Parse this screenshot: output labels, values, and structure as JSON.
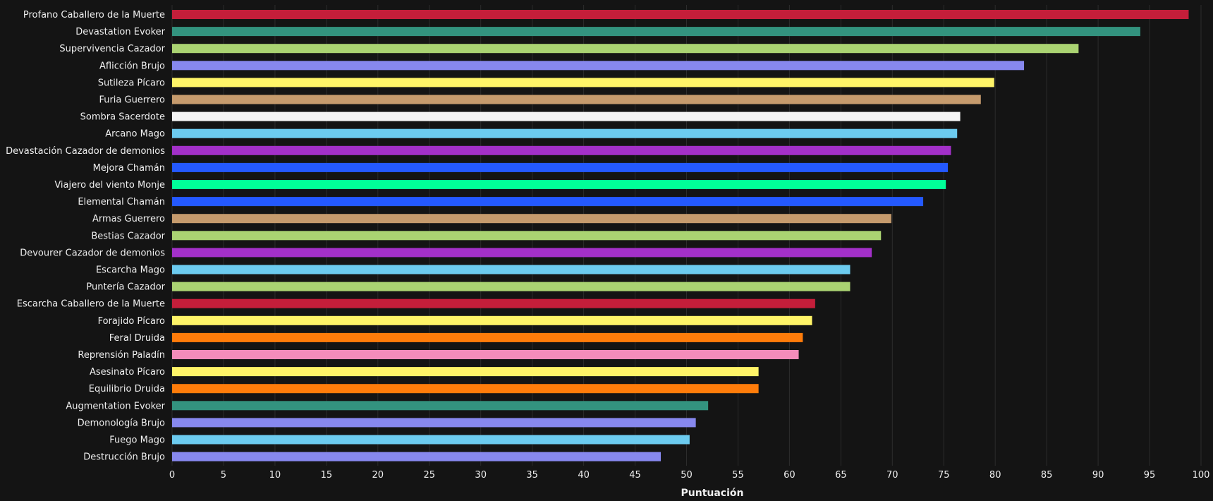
{
  "chart_data": {
    "type": "bar",
    "orientation": "horizontal",
    "title": "",
    "xlabel": "Puntuación",
    "ylabel": "",
    "xlim": [
      0,
      100
    ],
    "xticks": [
      0,
      5,
      10,
      15,
      20,
      25,
      30,
      35,
      40,
      45,
      50,
      55,
      60,
      65,
      70,
      75,
      80,
      85,
      90,
      95,
      100
    ],
    "grid": "vertical",
    "legend": "none",
    "categories": [
      "Profano Caballero de la Muerte",
      "Devastation Evoker",
      "Supervivencia Cazador",
      "Aflicción Brujo",
      "Sutileza Pícaro",
      "Furia Guerrero",
      "Sombra Sacerdote",
      "Arcano Mago",
      "Devastación Cazador de demonios",
      "Mejora Chamán",
      "Viajero del viento Monje",
      "Elemental Chamán",
      "Armas Guerrero",
      "Bestias Cazador",
      "Devourer Cazador de demonios",
      "Escarcha Mago",
      "Puntería Cazador",
      "Escarcha Caballero de la Muerte",
      "Forajido Pícaro",
      "Feral Druida",
      "Reprensión Paladín",
      "Asesinato Pícaro",
      "Equilibrio Druida",
      "Augmentation Evoker",
      "Demonología Brujo",
      "Fuego Mago",
      "Destrucción Brujo"
    ],
    "values": [
      98.8,
      94.1,
      88.1,
      82.8,
      79.9,
      78.6,
      76.6,
      76.3,
      75.7,
      75.4,
      75.2,
      73.0,
      69.9,
      68.9,
      68.0,
      65.9,
      65.9,
      62.5,
      62.2,
      61.3,
      60.9,
      57.0,
      57.0,
      52.1,
      50.9,
      50.3,
      47.5
    ],
    "colors": [
      "#C41E3A",
      "#33937F",
      "#AAD372",
      "#8788EE",
      "#FFF468",
      "#C69B6D",
      "#F5F5F5",
      "#6CCBEF",
      "#A330C9",
      "#2459FF",
      "#00FF98",
      "#2459FF",
      "#C69B6D",
      "#AAD372",
      "#A330C9",
      "#6CCBEF",
      "#AAD372",
      "#C41E3A",
      "#FFF468",
      "#FF7C0A",
      "#F48CBA",
      "#FFF468",
      "#FF7C0A",
      "#33937F",
      "#8788EE",
      "#6CCBEF",
      "#8788EE"
    ]
  }
}
